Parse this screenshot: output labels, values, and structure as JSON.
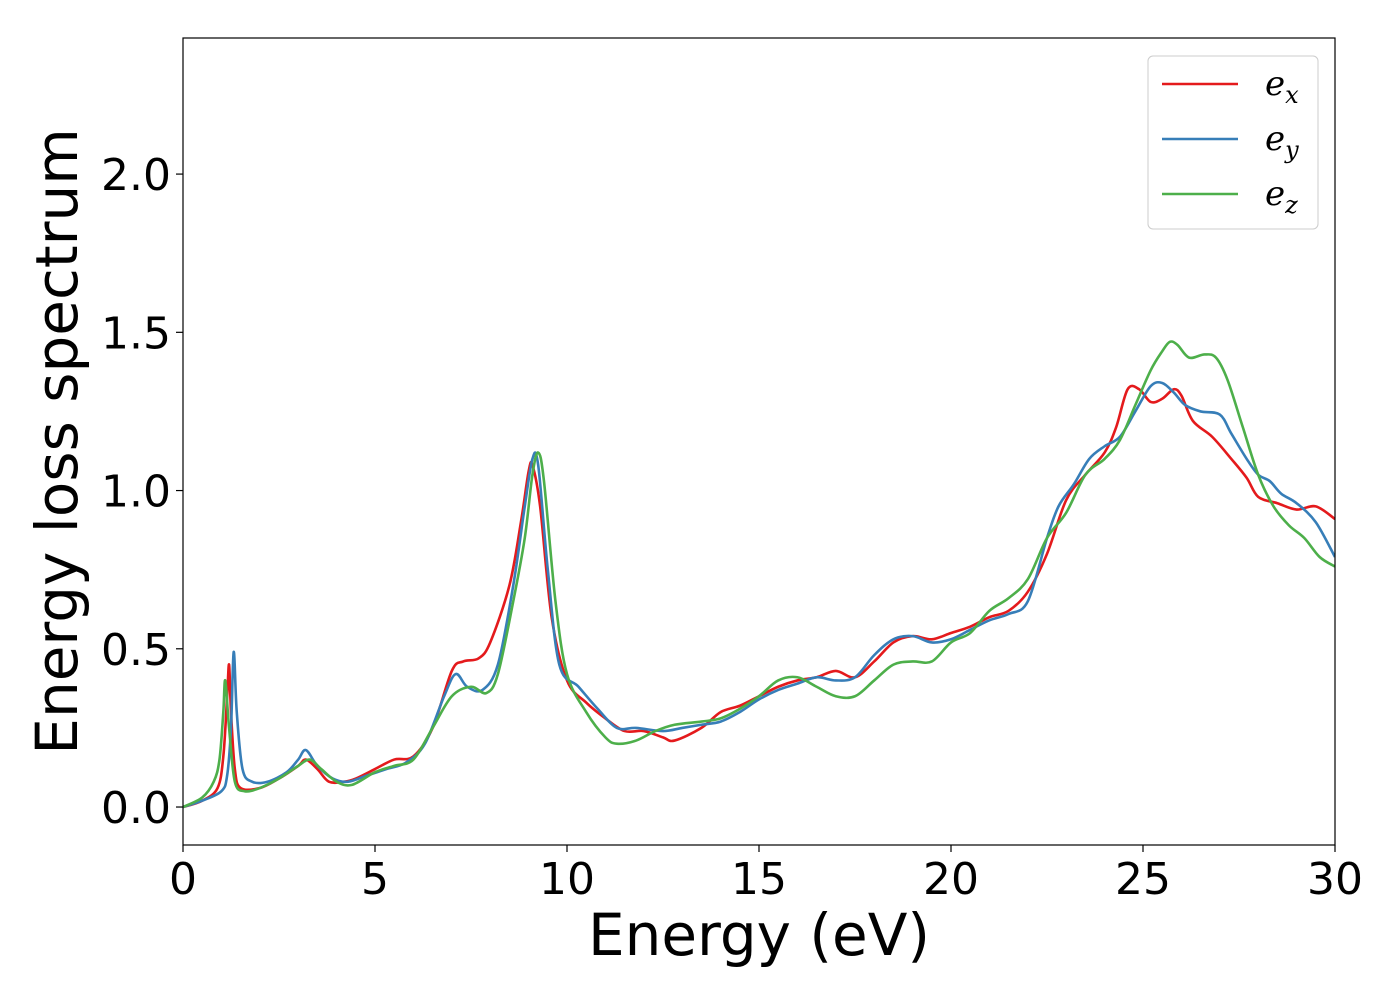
{
  "chart_data": {
    "type": "line",
    "title": "",
    "xlabel": "Energy (eV)",
    "ylabel": "Energy loss spectrum",
    "xlim": [
      0,
      30
    ],
    "ylim": [
      -0.12,
      2.43
    ],
    "xticks": [
      0,
      5,
      10,
      15,
      20,
      25,
      30
    ],
    "xtick_labels": [
      "0",
      "5",
      "10",
      "15",
      "20",
      "25",
      "30"
    ],
    "yticks": [
      0.0,
      0.5,
      1.0,
      1.5,
      2.0
    ],
    "ytick_labels": [
      "0.0",
      "0.5",
      "1.0",
      "1.5",
      "2.0"
    ],
    "grid": false,
    "legend_position": "top-right",
    "series": [
      {
        "name": "e_x",
        "legend_base": "e",
        "legend_sub": "x",
        "color": "#e41a1c",
        "points": [
          [
            0,
            0.0
          ],
          [
            0.5,
            0.02
          ],
          [
            0.9,
            0.06
          ],
          [
            1.05,
            0.16
          ],
          [
            1.15,
            0.35
          ],
          [
            1.2,
            0.45
          ],
          [
            1.25,
            0.3
          ],
          [
            1.35,
            0.12
          ],
          [
            1.5,
            0.06
          ],
          [
            2.0,
            0.06
          ],
          [
            2.5,
            0.09
          ],
          [
            3.0,
            0.13
          ],
          [
            3.2,
            0.15
          ],
          [
            3.5,
            0.12
          ],
          [
            3.8,
            0.08
          ],
          [
            4.2,
            0.08
          ],
          [
            4.5,
            0.09
          ],
          [
            5.0,
            0.12
          ],
          [
            5.5,
            0.15
          ],
          [
            6.0,
            0.16
          ],
          [
            6.5,
            0.25
          ],
          [
            7.0,
            0.43
          ],
          [
            7.3,
            0.46
          ],
          [
            7.7,
            0.47
          ],
          [
            8.0,
            0.52
          ],
          [
            8.5,
            0.7
          ],
          [
            8.8,
            0.9
          ],
          [
            9.0,
            1.06
          ],
          [
            9.1,
            1.08
          ],
          [
            9.3,
            0.95
          ],
          [
            9.6,
            0.6
          ],
          [
            10.0,
            0.4
          ],
          [
            10.5,
            0.33
          ],
          [
            11.0,
            0.28
          ],
          [
            11.5,
            0.24
          ],
          [
            12.0,
            0.24
          ],
          [
            12.5,
            0.22
          ],
          [
            12.8,
            0.21
          ],
          [
            13.5,
            0.25
          ],
          [
            14.0,
            0.3
          ],
          [
            14.5,
            0.32
          ],
          [
            15.0,
            0.35
          ],
          [
            15.5,
            0.38
          ],
          [
            16.0,
            0.4
          ],
          [
            16.5,
            0.41
          ],
          [
            17.0,
            0.43
          ],
          [
            17.5,
            0.41
          ],
          [
            18.0,
            0.46
          ],
          [
            18.5,
            0.52
          ],
          [
            19.0,
            0.54
          ],
          [
            19.5,
            0.53
          ],
          [
            20.0,
            0.55
          ],
          [
            20.5,
            0.57
          ],
          [
            21.0,
            0.6
          ],
          [
            21.5,
            0.62
          ],
          [
            22.0,
            0.68
          ],
          [
            22.5,
            0.8
          ],
          [
            23.0,
            0.97
          ],
          [
            23.5,
            1.05
          ],
          [
            24.0,
            1.12
          ],
          [
            24.3,
            1.2
          ],
          [
            24.6,
            1.32
          ],
          [
            24.9,
            1.32
          ],
          [
            25.2,
            1.28
          ],
          [
            25.5,
            1.29
          ],
          [
            25.8,
            1.32
          ],
          [
            26.0,
            1.3
          ],
          [
            26.3,
            1.22
          ],
          [
            26.8,
            1.17
          ],
          [
            27.3,
            1.1
          ],
          [
            27.7,
            1.04
          ],
          [
            28.0,
            0.98
          ],
          [
            28.5,
            0.96
          ],
          [
            29.0,
            0.94
          ],
          [
            29.5,
            0.95
          ],
          [
            30.0,
            0.91
          ]
        ]
      },
      {
        "name": "e_y",
        "legend_base": "e",
        "legend_sub": "y",
        "color": "#377eb8",
        "points": [
          [
            0,
            0.0
          ],
          [
            0.5,
            0.02
          ],
          [
            1.0,
            0.05
          ],
          [
            1.15,
            0.1
          ],
          [
            1.25,
            0.25
          ],
          [
            1.32,
            0.49
          ],
          [
            1.4,
            0.3
          ],
          [
            1.55,
            0.12
          ],
          [
            1.8,
            0.08
          ],
          [
            2.2,
            0.08
          ],
          [
            2.7,
            0.11
          ],
          [
            3.0,
            0.15
          ],
          [
            3.2,
            0.18
          ],
          [
            3.5,
            0.13
          ],
          [
            3.9,
            0.09
          ],
          [
            4.3,
            0.08
          ],
          [
            4.8,
            0.1
          ],
          [
            5.3,
            0.12
          ],
          [
            5.8,
            0.14
          ],
          [
            6.3,
            0.2
          ],
          [
            6.8,
            0.35
          ],
          [
            7.1,
            0.42
          ],
          [
            7.4,
            0.38
          ],
          [
            7.8,
            0.37
          ],
          [
            8.2,
            0.45
          ],
          [
            8.6,
            0.7
          ],
          [
            8.9,
            0.95
          ],
          [
            9.1,
            1.1
          ],
          [
            9.25,
            1.08
          ],
          [
            9.5,
            0.75
          ],
          [
            9.8,
            0.45
          ],
          [
            10.3,
            0.38
          ],
          [
            10.8,
            0.31
          ],
          [
            11.3,
            0.25
          ],
          [
            11.8,
            0.25
          ],
          [
            12.5,
            0.24
          ],
          [
            13.0,
            0.25
          ],
          [
            13.5,
            0.26
          ],
          [
            14.0,
            0.27
          ],
          [
            14.5,
            0.3
          ],
          [
            15.0,
            0.34
          ],
          [
            15.5,
            0.37
          ],
          [
            16.0,
            0.39
          ],
          [
            16.5,
            0.41
          ],
          [
            17.0,
            0.4
          ],
          [
            17.5,
            0.41
          ],
          [
            18.0,
            0.48
          ],
          [
            18.5,
            0.53
          ],
          [
            19.0,
            0.54
          ],
          [
            19.5,
            0.52
          ],
          [
            20.0,
            0.53
          ],
          [
            20.5,
            0.56
          ],
          [
            21.0,
            0.59
          ],
          [
            21.5,
            0.61
          ],
          [
            22.0,
            0.65
          ],
          [
            22.5,
            0.85
          ],
          [
            22.8,
            0.95
          ],
          [
            23.2,
            1.02
          ],
          [
            23.6,
            1.1
          ],
          [
            24.0,
            1.14
          ],
          [
            24.4,
            1.17
          ],
          [
            24.8,
            1.25
          ],
          [
            25.2,
            1.33
          ],
          [
            25.5,
            1.34
          ],
          [
            25.8,
            1.31
          ],
          [
            26.1,
            1.27
          ],
          [
            26.5,
            1.25
          ],
          [
            27.0,
            1.24
          ],
          [
            27.3,
            1.18
          ],
          [
            27.7,
            1.1
          ],
          [
            28.0,
            1.05
          ],
          [
            28.3,
            1.03
          ],
          [
            28.6,
            0.99
          ],
          [
            29.0,
            0.96
          ],
          [
            29.5,
            0.9
          ],
          [
            30.0,
            0.79
          ]
        ]
      },
      {
        "name": "e_z",
        "legend_base": "e",
        "legend_sub": "z",
        "color": "#4daf4a",
        "points": [
          [
            0,
            0.0
          ],
          [
            0.5,
            0.03
          ],
          [
            0.8,
            0.08
          ],
          [
            0.95,
            0.15
          ],
          [
            1.05,
            0.3
          ],
          [
            1.1,
            0.4
          ],
          [
            1.2,
            0.25
          ],
          [
            1.35,
            0.08
          ],
          [
            1.6,
            0.05
          ],
          [
            2.0,
            0.06
          ],
          [
            2.5,
            0.09
          ],
          [
            3.0,
            0.13
          ],
          [
            3.3,
            0.15
          ],
          [
            3.6,
            0.12
          ],
          [
            4.0,
            0.08
          ],
          [
            4.4,
            0.07
          ],
          [
            5.0,
            0.11
          ],
          [
            5.5,
            0.13
          ],
          [
            6.0,
            0.15
          ],
          [
            6.5,
            0.25
          ],
          [
            7.0,
            0.35
          ],
          [
            7.5,
            0.38
          ],
          [
            7.9,
            0.36
          ],
          [
            8.2,
            0.42
          ],
          [
            8.6,
            0.65
          ],
          [
            8.9,
            0.85
          ],
          [
            9.1,
            1.05
          ],
          [
            9.25,
            1.12
          ],
          [
            9.4,
            1.03
          ],
          [
            9.7,
            0.65
          ],
          [
            10.0,
            0.42
          ],
          [
            10.5,
            0.3
          ],
          [
            11.0,
            0.22
          ],
          [
            11.3,
            0.2
          ],
          [
            11.8,
            0.21
          ],
          [
            12.3,
            0.24
          ],
          [
            12.8,
            0.26
          ],
          [
            13.5,
            0.27
          ],
          [
            14.0,
            0.28
          ],
          [
            14.5,
            0.31
          ],
          [
            15.0,
            0.35
          ],
          [
            15.5,
            0.4
          ],
          [
            16.0,
            0.41
          ],
          [
            16.5,
            0.38
          ],
          [
            17.0,
            0.35
          ],
          [
            17.5,
            0.35
          ],
          [
            18.0,
            0.4
          ],
          [
            18.5,
            0.45
          ],
          [
            19.0,
            0.46
          ],
          [
            19.5,
            0.46
          ],
          [
            20.0,
            0.52
          ],
          [
            20.5,
            0.55
          ],
          [
            21.0,
            0.62
          ],
          [
            21.5,
            0.66
          ],
          [
            22.0,
            0.72
          ],
          [
            22.5,
            0.85
          ],
          [
            23.0,
            0.93
          ],
          [
            23.5,
            1.05
          ],
          [
            24.0,
            1.1
          ],
          [
            24.4,
            1.16
          ],
          [
            24.8,
            1.27
          ],
          [
            25.2,
            1.38
          ],
          [
            25.5,
            1.44
          ],
          [
            25.7,
            1.47
          ],
          [
            25.9,
            1.46
          ],
          [
            26.2,
            1.42
          ],
          [
            26.6,
            1.43
          ],
          [
            26.9,
            1.42
          ],
          [
            27.2,
            1.35
          ],
          [
            27.6,
            1.2
          ],
          [
            28.0,
            1.05
          ],
          [
            28.4,
            0.95
          ],
          [
            28.8,
            0.89
          ],
          [
            29.2,
            0.85
          ],
          [
            29.6,
            0.79
          ],
          [
            30.0,
            0.76
          ]
        ]
      }
    ]
  }
}
